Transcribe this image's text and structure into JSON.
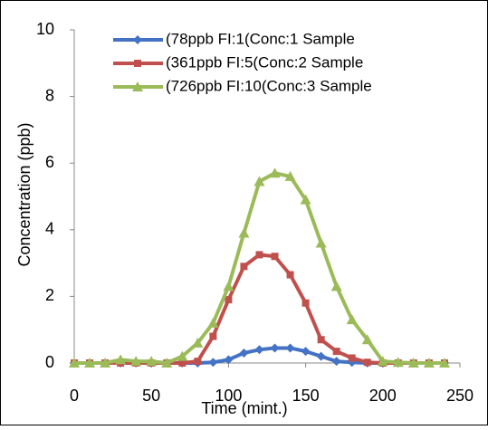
{
  "chart_data": {
    "type": "line",
    "x_label": "Time (mint.)",
    "y_label": "Concentration (ppb)",
    "x": [
      0,
      10,
      20,
      30,
      40,
      50,
      60,
      70,
      80,
      90,
      100,
      110,
      120,
      130,
      140,
      150,
      160,
      170,
      180,
      190,
      200,
      210,
      220,
      230,
      240
    ],
    "series": [
      {
        "name": "(78ppb FI:1(Conc:1 Sample",
        "color": "#4472c4",
        "marker": "diamond",
        "values": [
          0,
          0,
          0,
          0,
          0,
          0,
          0,
          0,
          0,
          0.02,
          0.1,
          0.3,
          0.4,
          0.45,
          0.45,
          0.35,
          0.2,
          0.05,
          0.02,
          0,
          0,
          0,
          0,
          0,
          0
        ]
      },
      {
        "name": "(361ppb FI:5(Conc:2 Sample",
        "color": "#c0504d",
        "marker": "square",
        "values": [
          0,
          0,
          0,
          0,
          0,
          0,
          0,
          0,
          0.05,
          0.8,
          1.9,
          2.9,
          3.25,
          3.2,
          2.65,
          1.8,
          0.7,
          0.35,
          0.15,
          0.02,
          0,
          0,
          0,
          0,
          0
        ]
      },
      {
        "name": "(726ppb FI:10(Conc:3 Sample",
        "color": "#9bbb59",
        "marker": "triangle",
        "values": [
          0,
          0,
          0,
          0.1,
          0.05,
          0.05,
          0,
          0.2,
          0.6,
          1.2,
          2.3,
          3.9,
          5.45,
          5.7,
          5.6,
          4.9,
          3.6,
          2.3,
          1.3,
          0.7,
          0.05,
          0.02,
          0,
          0,
          0
        ]
      }
    ],
    "xlim": [
      0,
      250
    ],
    "xticks": [
      0,
      50,
      100,
      150,
      200,
      250
    ],
    "ylim": [
      0,
      10
    ],
    "yticks": [
      0,
      2,
      4,
      6,
      8,
      10
    ]
  }
}
